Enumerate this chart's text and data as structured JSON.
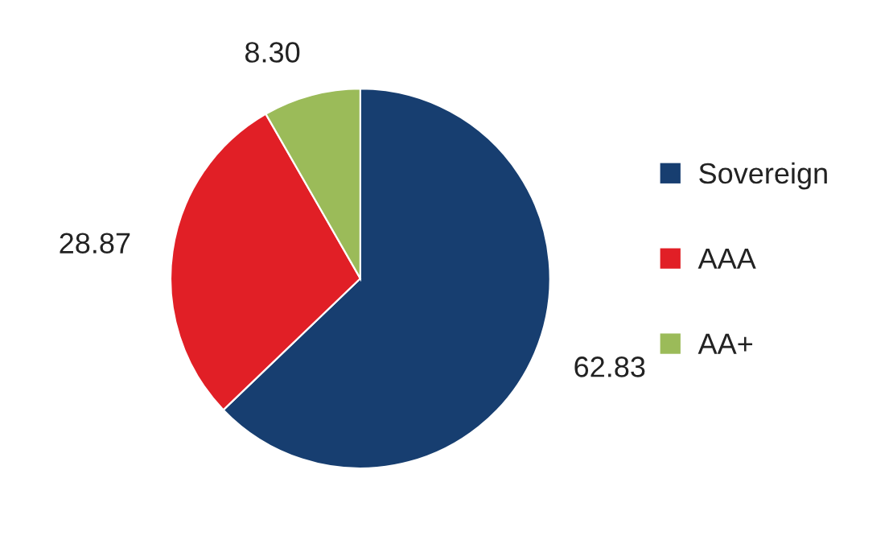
{
  "chart_data": {
    "type": "pie",
    "categories": [
      "Sovereign",
      "AAA",
      "AA+"
    ],
    "values": [
      62.83,
      28.87,
      8.3
    ],
    "value_labels": [
      "62.83",
      "28.87",
      "8.30"
    ],
    "colors": [
      "#173e70",
      "#e11f26",
      "#9bbb59"
    ],
    "legend": "right"
  }
}
